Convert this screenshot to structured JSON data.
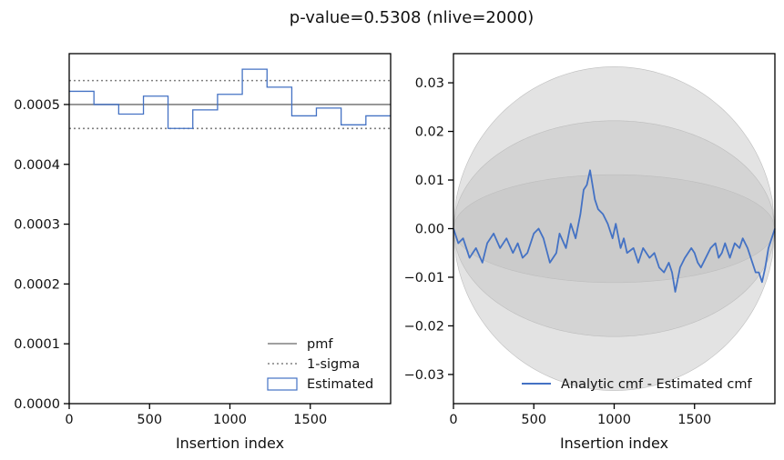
{
  "suptitle": "p-value=0.5308 (nlive=2000)",
  "colors": {
    "estimated": "#4472c4",
    "pmf": "#808080",
    "sigma": "#808080",
    "band": "#c0c0c0",
    "axis": "#000000"
  },
  "chart_data": [
    {
      "type": "step",
      "xlabel": "Insertion index",
      "ylabel": "",
      "xlim": [
        0,
        2000
      ],
      "ylim": [
        0,
        0.000585
      ],
      "xticks": [
        0,
        500,
        1000,
        1500
      ],
      "xtick_labels": [
        "0",
        "500",
        "1000",
        "1500"
      ],
      "yticks": [
        0,
        0.0001,
        0.0002,
        0.0003,
        0.0004,
        0.0005
      ],
      "ytick_labels": [
        "0.0000",
        "0.0001",
        "0.0002",
        "0.0003",
        "0.0004",
        "0.0005"
      ],
      "pmf": 0.0005,
      "sigma": [
        0.00046,
        0.00054
      ],
      "bin_edges": [
        0,
        154,
        308,
        462,
        615,
        769,
        923,
        1077,
        1231,
        1385,
        1538,
        1692,
        1846,
        2000
      ],
      "estimated": [
        0.000522,
        0.0005,
        0.000484,
        0.000514,
        0.00046,
        0.000491,
        0.000517,
        0.000559,
        0.000529,
        0.000481,
        0.000494,
        0.000466,
        0.000481
      ],
      "legend": {
        "position": "lower-right",
        "entries": [
          "pmf",
          "1-sigma",
          "Estimated"
        ]
      }
    },
    {
      "type": "line",
      "xlabel": "Insertion index",
      "ylabel": "",
      "xlim": [
        0,
        2000
      ],
      "ylim": [
        -0.036,
        0.036
      ],
      "xticks": [
        0,
        500,
        1000,
        1500
      ],
      "xtick_labels": [
        "0",
        "500",
        "1000",
        "1500"
      ],
      "yticks": [
        -0.03,
        -0.02,
        -0.01,
        0.0,
        0.01,
        0.02,
        0.03
      ],
      "ytick_labels": [
        "−0.03",
        "−0.02",
        "−0.01",
        "0.00",
        "0.01",
        "0.02",
        "0.03"
      ],
      "band_amplitudes": [
        0.0111,
        0.0222,
        0.0333
      ],
      "series": [
        {
          "name": "Analytic cmf - Estimated cmf",
          "x": [
            0,
            30,
            60,
            100,
            140,
            180,
            210,
            250,
            290,
            330,
            370,
            400,
            430,
            460,
            500,
            530,
            560,
            600,
            640,
            660,
            700,
            730,
            760,
            790,
            810,
            830,
            850,
            880,
            900,
            930,
            960,
            990,
            1010,
            1040,
            1060,
            1080,
            1120,
            1150,
            1180,
            1220,
            1250,
            1280,
            1310,
            1340,
            1360,
            1380,
            1410,
            1440,
            1480,
            1500,
            1520,
            1540,
            1570,
            1600,
            1630,
            1650,
            1670,
            1690,
            1720,
            1750,
            1780,
            1800,
            1830,
            1860,
            1880,
            1900,
            1920,
            1940,
            1960,
            1980,
            2000
          ],
          "y": [
            0.0,
            -0.003,
            -0.002,
            -0.006,
            -0.004,
            -0.007,
            -0.003,
            -0.001,
            -0.004,
            -0.002,
            -0.005,
            -0.003,
            -0.006,
            -0.005,
            -0.001,
            0.0,
            -0.002,
            -0.007,
            -0.005,
            -0.001,
            -0.004,
            0.001,
            -0.002,
            0.003,
            0.008,
            0.009,
            0.012,
            0.006,
            0.004,
            0.003,
            0.001,
            -0.002,
            0.001,
            -0.004,
            -0.002,
            -0.005,
            -0.004,
            -0.007,
            -0.004,
            -0.006,
            -0.005,
            -0.008,
            -0.009,
            -0.007,
            -0.009,
            -0.013,
            -0.008,
            -0.006,
            -0.004,
            -0.005,
            -0.007,
            -0.008,
            -0.006,
            -0.004,
            -0.003,
            -0.006,
            -0.005,
            -0.003,
            -0.006,
            -0.003,
            -0.004,
            -0.002,
            -0.004,
            -0.007,
            -0.009,
            -0.009,
            -0.011,
            -0.008,
            -0.004,
            -0.002,
            0.0
          ]
        }
      ],
      "legend": {
        "position": "lower-right",
        "entries": [
          "Analytic cmf - Estimated cmf"
        ]
      }
    }
  ]
}
